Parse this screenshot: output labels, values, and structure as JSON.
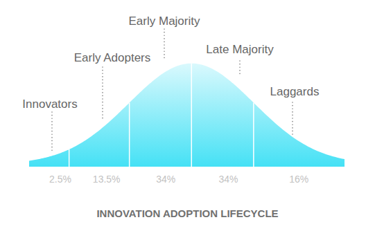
{
  "chart_data": {
    "type": "area",
    "title": "INNOVATION ADOPTION LIFECYCLE",
    "categories": [
      "Innovators",
      "Early Adopters",
      "Early Majority",
      "Late Majority",
      "Laggards"
    ],
    "values": [
      2.5,
      13.5,
      34,
      34,
      16
    ],
    "value_labels": [
      "2.5%",
      "13.5%",
      "34%",
      "34%",
      "16%"
    ],
    "data_labels": true,
    "color": "#45e1f5",
    "tick_labels": false
  }
}
